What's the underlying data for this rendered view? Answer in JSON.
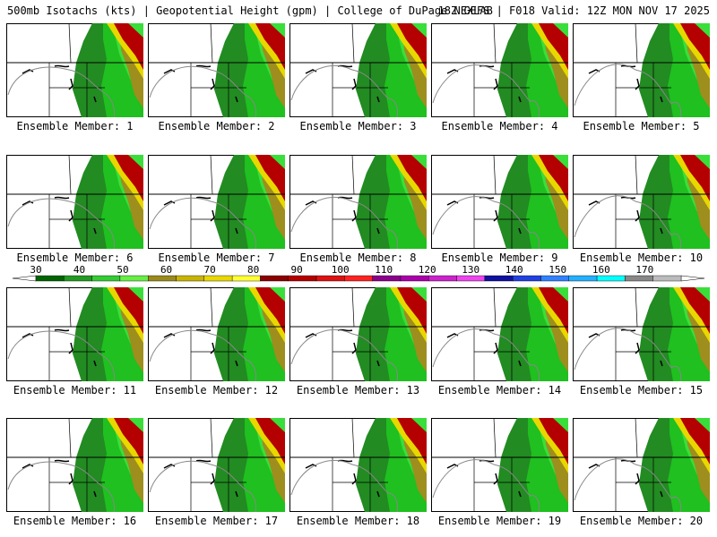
{
  "header": {
    "left": "500mb Isotachs (kts) | Geopotential Height (gpm) | College of DuPage NEXLAB",
    "right": "18Z GEFS | F018 Valid: 12Z MON NOV 17 2025"
  },
  "panels": [
    {
      "label": "Ensemble Member: 1"
    },
    {
      "label": "Ensemble Member: 2"
    },
    {
      "label": "Ensemble Member: 3"
    },
    {
      "label": "Ensemble Member: 4"
    },
    {
      "label": "Ensemble Member: 5"
    },
    {
      "label": "Ensemble Member: 6"
    },
    {
      "label": "Ensemble Member: 7"
    },
    {
      "label": "Ensemble Member: 8"
    },
    {
      "label": "Ensemble Member: 9"
    },
    {
      "label": "Ensemble Member: 10"
    },
    {
      "label": "Ensemble Member: 11"
    },
    {
      "label": "Ensemble Member: 12"
    },
    {
      "label": "Ensemble Member: 13"
    },
    {
      "label": "Ensemble Member: 14"
    },
    {
      "label": "Ensemble Member: 15"
    },
    {
      "label": "Ensemble Member: 16"
    },
    {
      "label": "Ensemble Member: 17"
    },
    {
      "label": "Ensemble Member: 18"
    },
    {
      "label": "Ensemble Member: 19"
    },
    {
      "label": "Ensemble Member: 20"
    }
  ],
  "legend": {
    "ticks": [
      "30",
      "40",
      "50",
      "60",
      "70",
      "80",
      "90",
      "100",
      "110",
      "120",
      "130",
      "140",
      "150",
      "160",
      "170"
    ],
    "colors": [
      "#006400",
      "#229a22",
      "#33cc33",
      "#66ee44",
      "#9a8a1a",
      "#c8b400",
      "#e8d800",
      "#ffff33",
      "#8b0000",
      "#b40000",
      "#dd1111",
      "#ff2222",
      "#8b008b",
      "#aa00aa",
      "#cc22cc",
      "#ee44ee",
      "#1010a0",
      "#2040e0",
      "#3080ff",
      "#22b0ff",
      "#00ffff",
      "#888888",
      "#bbbbbb"
    ]
  }
}
